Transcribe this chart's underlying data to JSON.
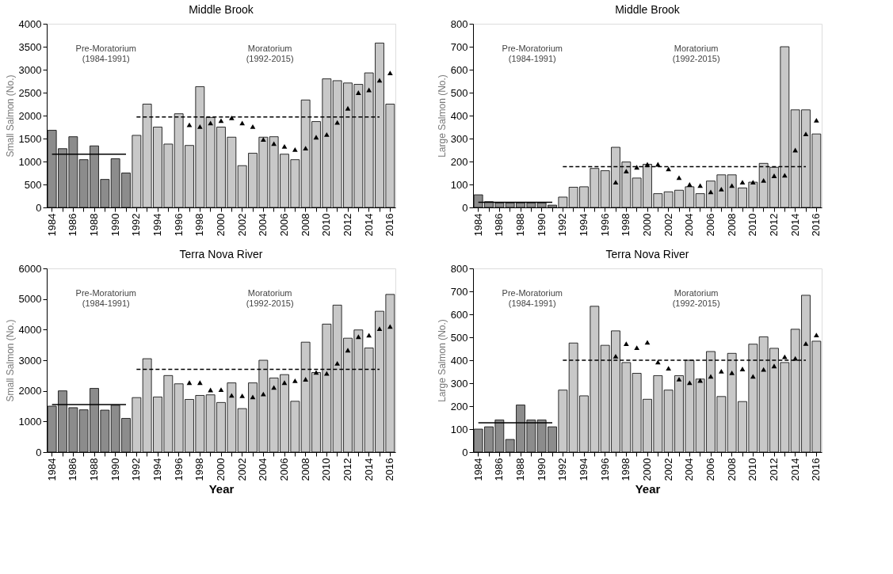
{
  "chart_data": [
    {
      "type": "bar",
      "title": "Middle Brook",
      "ylabel": "Small Salmon  (No.)",
      "categories": [
        "1984",
        null,
        "1986",
        null,
        "1988",
        null,
        "1990",
        null,
        "1992",
        null,
        "1994",
        null,
        "1996",
        null,
        "1998",
        null,
        "2000",
        null,
        "2002",
        null,
        "2004",
        null,
        "2006",
        null,
        "2008",
        null,
        "2010",
        null,
        "2012",
        null,
        "2014",
        null,
        "2016"
      ],
      "ylim": [
        0,
        4000
      ],
      "yticks": [
        0,
        500,
        1000,
        1500,
        2000,
        2500,
        3000,
        3500,
        4000
      ],
      "grid": false,
      "annotations": [
        "Pre-Moratorium\n(1984-1991)",
        "Moratorium\n(1992-2015)"
      ],
      "series": [
        {
          "colors": [
            "#8c8c8c",
            "#8c8c8c",
            "#8c8c8c",
            "#8c8c8c",
            "#8c8c8c",
            "#8c8c8c",
            "#8c8c8c",
            "#8c8c8c",
            "#c8c8c8",
            "#c8c8c8",
            "#c8c8c8",
            "#c8c8c8",
            "#c8c8c8",
            "#c8c8c8",
            "#c8c8c8",
            "#c8c8c8",
            "#c8c8c8",
            "#c8c8c8",
            "#c8c8c8",
            "#c8c8c8",
            "#c8c8c8",
            "#c8c8c8",
            "#c8c8c8",
            "#c8c8c8",
            "#c8c8c8",
            "#c8c8c8",
            "#c8c8c8",
            "#c8c8c8",
            "#c8c8c8",
            "#c8c8c8",
            "#c8c8c8",
            "#c8c8c8",
            "#c8c8c8"
          ],
          "values": [
            1680,
            1280,
            1540,
            1040,
            1340,
            610,
            1060,
            750,
            1570,
            2250,
            1750,
            1380,
            2040,
            1350,
            2630,
            1960,
            1750,
            1530,
            910,
            1180,
            1530,
            1540,
            1160,
            1040,
            2340,
            1870,
            2800,
            2760,
            2710,
            2680,
            2930,
            3580,
            2250
          ]
        },
        {
          "type": "line",
          "color": "#000000",
          "line_style": "solid",
          "values": [
            1160,
            1160,
            1160,
            1160,
            1160,
            1160,
            1160,
            1160,
            null,
            null,
            null,
            null,
            null,
            null,
            null,
            null,
            null,
            null,
            null,
            null,
            null,
            null,
            null,
            null,
            null,
            null,
            null,
            null,
            null,
            null,
            null,
            null,
            null
          ]
        },
        {
          "type": "line",
          "color": "#000000",
          "line_style": "dashed",
          "values": [
            null,
            null,
            null,
            null,
            null,
            null,
            null,
            null,
            1970,
            1970,
            1970,
            1970,
            1970,
            1970,
            1970,
            1970,
            1970,
            1970,
            1970,
            1970,
            1970,
            1970,
            1970,
            1970,
            1970,
            1970,
            1970,
            1970,
            1970,
            1970,
            1970,
            1970,
            null
          ]
        },
        {
          "type": "scatter",
          "color": "#000000",
          "marker": "triangle",
          "values": [
            null,
            null,
            null,
            null,
            null,
            null,
            null,
            null,
            null,
            null,
            null,
            null,
            null,
            1800,
            1760,
            1840,
            1890,
            1950,
            1840,
            1760,
            1480,
            1390,
            1330,
            1260,
            1290,
            1530,
            1590,
            1850,
            2160,
            2500,
            2560,
            2770,
            2930
          ]
        }
      ]
    },
    {
      "type": "bar",
      "title": "Middle Brook",
      "ylabel": "Large Salmon  (No.)",
      "categories": [
        "1984",
        null,
        "1986",
        null,
        "1988",
        null,
        "1990",
        null,
        "1992",
        null,
        "1994",
        null,
        "1996",
        null,
        "1998",
        null,
        "2000",
        null,
        "2002",
        null,
        "2004",
        null,
        "2006",
        null,
        "2008",
        null,
        "2010",
        null,
        "2012",
        null,
        "2014",
        null,
        "2016"
      ],
      "ylim": [
        0,
        800
      ],
      "yticks": [
        0,
        100,
        200,
        300,
        400,
        500,
        600,
        700,
        800
      ],
      "grid": false,
      "annotations": [
        "Pre-Moratorium\n(1984-1991)",
        "Moratorium\n(1992-2015)"
      ],
      "series": [
        {
          "colors": [
            "#8c8c8c",
            "#8c8c8c",
            "#8c8c8c",
            "#8c8c8c",
            "#8c8c8c",
            "#8c8c8c",
            "#8c8c8c",
            "#8c8c8c",
            "#c8c8c8",
            "#c8c8c8",
            "#c8c8c8",
            "#c8c8c8",
            "#c8c8c8",
            "#c8c8c8",
            "#c8c8c8",
            "#c8c8c8",
            "#c8c8c8",
            "#c8c8c8",
            "#c8c8c8",
            "#c8c8c8",
            "#c8c8c8",
            "#c8c8c8",
            "#c8c8c8",
            "#c8c8c8",
            "#c8c8c8",
            "#c8c8c8",
            "#c8c8c8",
            "#c8c8c8",
            "#c8c8c8",
            "#c8c8c8",
            "#c8c8c8",
            "#c8c8c8",
            "#c8c8c8"
          ],
          "values": [
            55,
            25,
            20,
            20,
            20,
            20,
            20,
            10,
            45,
            88,
            90,
            170,
            160,
            262,
            198,
            128,
            188,
            60,
            68,
            75,
            90,
            60,
            115,
            142,
            142,
            85,
            110,
            192,
            175,
            700,
            425,
            425,
            320
          ]
        },
        {
          "type": "line",
          "color": "#000000",
          "line_style": "solid",
          "values": [
            22,
            22,
            22,
            22,
            22,
            22,
            22,
            22,
            null,
            null,
            null,
            null,
            null,
            null,
            null,
            null,
            null,
            null,
            null,
            null,
            null,
            null,
            null,
            null,
            null,
            null,
            null,
            null,
            null,
            null,
            null,
            null,
            null
          ]
        },
        {
          "type": "line",
          "color": "#000000",
          "line_style": "dashed",
          "values": [
            null,
            null,
            null,
            null,
            null,
            null,
            null,
            null,
            178,
            178,
            178,
            178,
            178,
            178,
            178,
            178,
            178,
            178,
            178,
            178,
            178,
            178,
            178,
            178,
            178,
            178,
            178,
            178,
            178,
            178,
            178,
            178,
            null
          ]
        },
        {
          "type": "scatter",
          "color": "#000000",
          "marker": "triangle",
          "values": [
            null,
            null,
            null,
            null,
            null,
            null,
            null,
            null,
            null,
            null,
            null,
            null,
            null,
            110,
            158,
            175,
            188,
            188,
            168,
            130,
            100,
            95,
            68,
            80,
            95,
            110,
            110,
            118,
            138,
            140,
            250,
            320,
            380
          ]
        }
      ]
    },
    {
      "type": "bar",
      "title": "Terra Nova River",
      "ylabel": "Small Salmon  (No.)",
      "xlabel": "Year",
      "categories": [
        "1984",
        null,
        "1986",
        null,
        "1988",
        null,
        "1990",
        null,
        "1992",
        null,
        "1994",
        null,
        "1996",
        null,
        "1998",
        null,
        "2000",
        null,
        "2002",
        null,
        "2004",
        null,
        "2006",
        null,
        "2008",
        null,
        "2010",
        null,
        "2012",
        null,
        "2014",
        null,
        "2016"
      ],
      "ylim": [
        0,
        6000
      ],
      "yticks": [
        0,
        1000,
        2000,
        3000,
        4000,
        5000,
        6000
      ],
      "grid": false,
      "annotations": [
        "Pre-Moratorium\n(1984-1991)",
        "Moratorium\n(1992-2015)"
      ],
      "series": [
        {
          "colors": [
            "#8c8c8c",
            "#8c8c8c",
            "#8c8c8c",
            "#8c8c8c",
            "#8c8c8c",
            "#8c8c8c",
            "#8c8c8c",
            "#8c8c8c",
            "#c8c8c8",
            "#c8c8c8",
            "#c8c8c8",
            "#c8c8c8",
            "#c8c8c8",
            "#c8c8c8",
            "#c8c8c8",
            "#c8c8c8",
            "#c8c8c8",
            "#c8c8c8",
            "#c8c8c8",
            "#c8c8c8",
            "#c8c8c8",
            "#c8c8c8",
            "#c8c8c8",
            "#c8c8c8",
            "#c8c8c8",
            "#c8c8c8",
            "#c8c8c8",
            "#c8c8c8",
            "#c8c8c8",
            "#c8c8c8",
            "#c8c8c8",
            "#c8c8c8",
            "#c8c8c8"
          ],
          "values": [
            1500,
            2000,
            1450,
            1380,
            2080,
            1370,
            1530,
            1100,
            1780,
            3050,
            1800,
            2500,
            2230,
            1720,
            1850,
            1870,
            1620,
            2260,
            1420,
            2260,
            3000,
            2420,
            2530,
            1660,
            3590,
            2600,
            4180,
            4800,
            3720,
            3990,
            3400,
            4600,
            5150
          ]
        },
        {
          "type": "line",
          "color": "#000000",
          "line_style": "solid",
          "values": [
            1550,
            1550,
            1550,
            1550,
            1550,
            1550,
            1550,
            1550,
            null,
            null,
            null,
            null,
            null,
            null,
            null,
            null,
            null,
            null,
            null,
            null,
            null,
            null,
            null,
            null,
            null,
            null,
            null,
            null,
            null,
            null,
            null,
            null,
            null
          ]
        },
        {
          "type": "line",
          "color": "#000000",
          "line_style": "dashed",
          "values": [
            null,
            null,
            null,
            null,
            null,
            null,
            null,
            null,
            2700,
            2700,
            2700,
            2700,
            2700,
            2700,
            2700,
            2700,
            2700,
            2700,
            2700,
            2700,
            2700,
            2700,
            2700,
            2700,
            2700,
            2700,
            2700,
            2700,
            2700,
            2700,
            2700,
            2700,
            null
          ]
        },
        {
          "type": "scatter",
          "color": "#000000",
          "marker": "triangle",
          "values": [
            null,
            null,
            null,
            null,
            null,
            null,
            null,
            null,
            null,
            null,
            null,
            null,
            null,
            2270,
            2270,
            2030,
            2040,
            1850,
            1840,
            1800,
            1900,
            2110,
            2270,
            2330,
            2380,
            2600,
            2570,
            2900,
            3330,
            3770,
            3820,
            4030,
            4100
          ]
        }
      ]
    },
    {
      "type": "bar",
      "title": "Terra Nova River",
      "ylabel": "Large Salmon  (No.)",
      "xlabel": "Year",
      "categories": [
        "1984",
        null,
        "1986",
        null,
        "1988",
        null,
        "1990",
        null,
        "1992",
        null,
        "1994",
        null,
        "1996",
        null,
        "1998",
        null,
        "2000",
        null,
        "2002",
        null,
        "2004",
        null,
        "2006",
        null,
        "2008",
        null,
        "2010",
        null,
        "2012",
        null,
        "2014",
        null,
        "2016"
      ],
      "ylim": [
        0,
        800
      ],
      "yticks": [
        0,
        100,
        200,
        300,
        400,
        500,
        600,
        700,
        800
      ],
      "grid": false,
      "annotations": [
        "Pre-Moratorium\n(1984-1991)",
        "Moratorium\n(1992-2015)"
      ],
      "series": [
        {
          "colors": [
            "#8c8c8c",
            "#8c8c8c",
            "#8c8c8c",
            "#8c8c8c",
            "#8c8c8c",
            "#8c8c8c",
            "#8c8c8c",
            "#8c8c8c",
            "#c8c8c8",
            "#c8c8c8",
            "#c8c8c8",
            "#c8c8c8",
            "#c8c8c8",
            "#c8c8c8",
            "#c8c8c8",
            "#c8c8c8",
            "#c8c8c8",
            "#c8c8c8",
            "#c8c8c8",
            "#c8c8c8",
            "#c8c8c8",
            "#c8c8c8",
            "#c8c8c8",
            "#c8c8c8",
            "#c8c8c8",
            "#c8c8c8",
            "#c8c8c8",
            "#c8c8c8",
            "#c8c8c8",
            "#c8c8c8",
            "#c8c8c8",
            "#c8c8c8",
            "#c8c8c8"
          ],
          "values": [
            100,
            110,
            140,
            55,
            205,
            140,
            140,
            110,
            270,
            475,
            245,
            635,
            465,
            528,
            390,
            343,
            230,
            333,
            270,
            333,
            400,
            318,
            438,
            242,
            430,
            220,
            470,
            502,
            452,
            390,
            535,
            683,
            483
          ]
        },
        {
          "type": "line",
          "color": "#000000",
          "line_style": "solid",
          "values": [
            128,
            128,
            128,
            128,
            128,
            128,
            128,
            128,
            null,
            null,
            null,
            null,
            null,
            null,
            null,
            null,
            null,
            null,
            null,
            null,
            null,
            null,
            null,
            null,
            null,
            null,
            null,
            null,
            null,
            null,
            null,
            null,
            null
          ]
        },
        {
          "type": "line",
          "color": "#000000",
          "line_style": "dashed",
          "values": [
            null,
            null,
            null,
            null,
            null,
            null,
            null,
            null,
            400,
            400,
            400,
            400,
            400,
            400,
            400,
            400,
            400,
            400,
            400,
            400,
            400,
            400,
            400,
            400,
            400,
            400,
            400,
            400,
            400,
            400,
            400,
            400,
            null
          ]
        },
        {
          "type": "scatter",
          "color": "#000000",
          "marker": "triangle",
          "values": [
            null,
            null,
            null,
            null,
            null,
            null,
            null,
            null,
            null,
            null,
            null,
            null,
            null,
            418,
            472,
            455,
            478,
            392,
            365,
            318,
            302,
            312,
            330,
            352,
            345,
            362,
            330,
            360,
            375,
            415,
            408,
            473,
            510
          ]
        }
      ]
    }
  ]
}
